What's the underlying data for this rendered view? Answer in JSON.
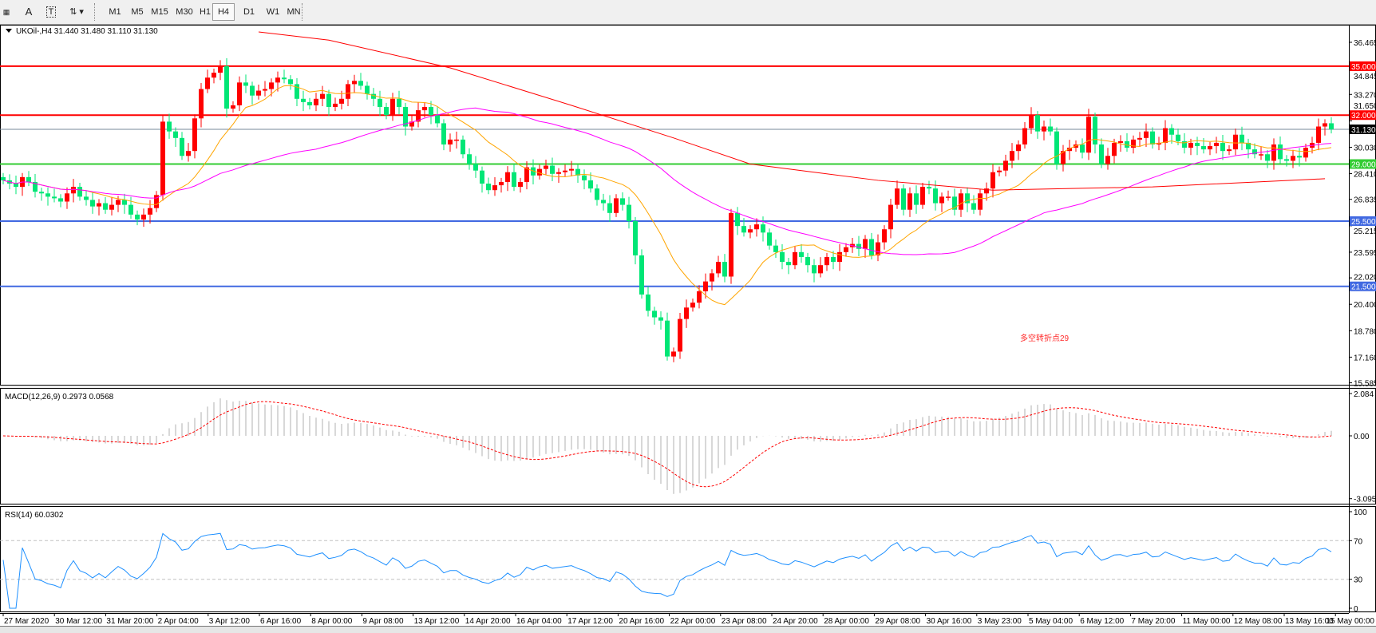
{
  "toolbar": {
    "icons": [
      "grid-icon",
      "text-a-icon",
      "text-label-icon",
      "arrows-icon"
    ],
    "timeframes": [
      "M1",
      "M5",
      "M15",
      "M30",
      "H1",
      "H4",
      "D1",
      "W1",
      "MN"
    ],
    "active_timeframe": "H4"
  },
  "chart": {
    "header": "UKOil-,H4  31.440 31.480 31.110 31.130",
    "annotation": "多空转折点29",
    "colors": {
      "bull": "#ff0000",
      "bear": "#00e676",
      "ma_fast": "#ffa500",
      "ma_mid": "#ff00ff",
      "ma_slow": "#ff0000",
      "grid_text": "#000000"
    },
    "price_axis": [
      "36.465",
      "34.845",
      "33.270",
      "31.650",
      "30.030",
      "28.410",
      "26.835",
      "25.215",
      "23.595",
      "22.020",
      "20.400",
      "18.780",
      "17.160",
      "15.585"
    ],
    "levels": [
      {
        "price": 35.0,
        "label": "35.000",
        "color": "#ff0000"
      },
      {
        "price": 32.0,
        "label": "32.000",
        "color": "#ff0000"
      },
      {
        "price": 29.0,
        "label": "29.000",
        "color": "#33cc33"
      },
      {
        "price": 25.5,
        "label": "25.500",
        "color": "#4169e1"
      },
      {
        "price": 21.5,
        "label": "21.500",
        "color": "#4169e1"
      }
    ],
    "current_price": {
      "price": 31.13,
      "label": "31.130"
    },
    "closes": [
      28.0,
      27.8,
      27.6,
      28.2,
      27.9,
      27.3,
      27.2,
      27.0,
      26.9,
      26.7,
      27.2,
      27.6,
      27.0,
      26.8,
      26.4,
      26.6,
      26.2,
      26.5,
      26.8,
      26.5,
      25.9,
      25.6,
      25.9,
      26.3,
      27.1,
      31.6,
      31.0,
      30.6,
      29.5,
      29.8,
      31.8,
      33.6,
      34.3,
      34.6,
      35.0,
      32.4,
      32.6,
      34.0,
      33.8,
      33.2,
      33.5,
      33.6,
      34.0,
      34.3,
      34.2,
      33.9,
      33.0,
      32.8,
      32.6,
      33.0,
      33.3,
      32.5,
      32.7,
      33.0,
      33.9,
      34.1,
      33.8,
      33.3,
      33.0,
      32.5,
      32.0,
      33.0,
      32.5,
      31.3,
      31.6,
      32.3,
      32.5,
      32.0,
      31.5,
      30.2,
      30.5,
      30.5,
      29.6,
      29.0,
      28.6,
      27.8,
      27.4,
      27.7,
      27.9,
      28.5,
      27.6,
      27.9,
      28.8,
      28.3,
      28.7,
      28.9,
      28.4,
      28.5,
      28.6,
      28.7,
      28.3,
      28.0,
      27.5,
      26.8,
      26.6,
      26.0,
      26.9,
      26.5,
      25.5,
      23.4,
      21.0,
      20.0,
      19.6,
      19.4,
      17.2,
      17.5,
      19.5,
      20.2,
      20.5,
      21.2,
      21.8,
      22.3,
      23.0,
      22.1,
      26.0,
      25.2,
      24.8,
      25.0,
      25.3,
      24.8,
      24.0,
      23.6,
      23.0,
      22.8,
      23.6,
      23.3,
      22.8,
      22.3,
      22.8,
      23.3,
      23.0,
      23.6,
      23.9,
      24.1,
      23.8,
      24.4,
      23.4,
      24.2,
      25.0,
      26.5,
      27.5,
      26.2,
      27.2,
      26.5,
      27.6,
      27.5,
      26.6,
      27.0,
      27.0,
      26.2,
      27.2,
      26.6,
      26.2,
      27.2,
      27.5,
      28.5,
      28.6,
      29.2,
      29.8,
      30.2,
      31.2,
      32.0,
      31.0,
      31.3,
      31.0,
      29.0,
      29.8,
      30.0,
      30.2,
      29.7,
      31.9,
      30.2,
      29.0,
      29.5,
      30.3,
      30.4,
      30.0,
      30.5,
      30.6,
      31.0,
      30.2,
      30.3,
      31.2,
      30.8,
      30.4,
      30.0,
      30.3,
      30.1,
      29.9,
      30.1,
      30.3,
      29.8,
      29.9,
      30.8,
      30.3,
      29.9,
      29.6,
      29.6,
      29.2,
      30.2,
      29.3,
      29.2,
      29.5,
      29.4,
      30.0,
      30.3,
      31.3,
      31.5,
      31.13
    ],
    "slow_ma_points": [
      [
        40,
        37.1
      ],
      [
        51,
        36.6
      ],
      [
        70,
        34.9
      ],
      [
        89,
        32.6
      ],
      [
        105,
        30.6
      ],
      [
        117,
        29.0
      ],
      [
        137,
        28.0
      ],
      [
        155,
        27.4
      ],
      [
        180,
        27.6
      ],
      [
        207,
        28.1
      ]
    ]
  },
  "macd": {
    "label": "MACD(12,26,9) 0.2973 0.0568",
    "axis": [
      "2.084",
      "0.00",
      "-3.0957"
    ]
  },
  "rsi": {
    "label": "RSI(14) 60.0302",
    "axis": [
      "100",
      "70",
      "30",
      "0"
    ],
    "levels": [
      70,
      30
    ]
  },
  "time_axis": [
    "27 Mar 2020",
    "30 Mar 12:00",
    "31 Mar 20:00",
    "2 Apr 04:00",
    "3 Apr 12:00",
    "6 Apr 16:00",
    "8 Apr 00:00",
    "9 Apr 08:00",
    "13 Apr 12:00",
    "14 Apr 20:00",
    "16 Apr 04:00",
    "17 Apr 12:00",
    "20 Apr 16:00",
    "22 Apr 00:00",
    "23 Apr 08:00",
    "24 Apr 20:00",
    "28 Apr 00:00",
    "29 Apr 08:00",
    "30 Apr 16:00",
    "3 May 23:00",
    "5 May 04:00",
    "6 May 12:00",
    "7 May 20:00",
    "11 May 00:00",
    "12 May 08:00",
    "13 May 16:00",
    "15 May 00:00"
  ]
}
